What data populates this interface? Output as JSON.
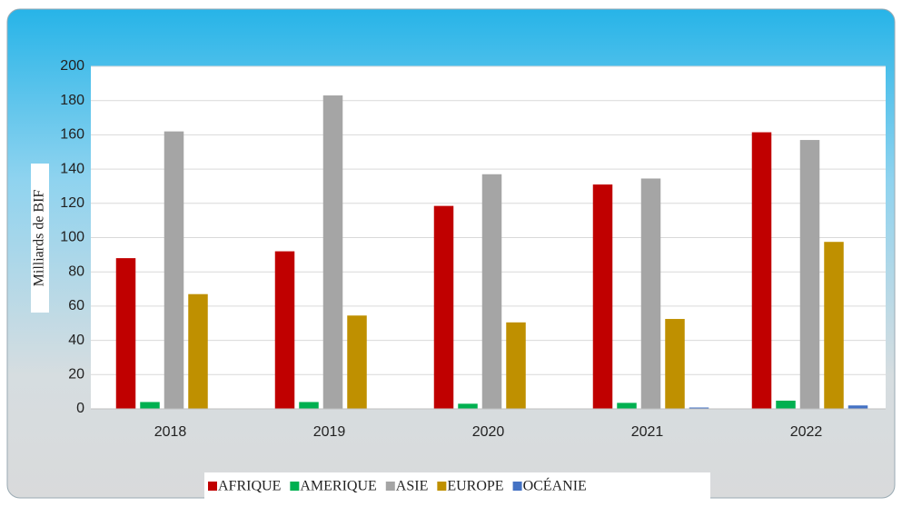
{
  "chart_data": {
    "type": "bar",
    "y_label": "Milliards de BIF",
    "categories": [
      "2018",
      "2019",
      "2020",
      "2021",
      "2022"
    ],
    "series": [
      {
        "name": "AFRIQUE",
        "color": "#c00000",
        "values": [
          88,
          92,
          118.5,
          131,
          161.5
        ]
      },
      {
        "name": "AMERIQUE",
        "color": "#00b050",
        "values": [
          4,
          4,
          3,
          3.5,
          4.8
        ]
      },
      {
        "name": "ASIE",
        "color": "#a5a5a5",
        "values": [
          162,
          183,
          137,
          134.5,
          157
        ]
      },
      {
        "name": "EUROPE",
        "color": "#bf9000",
        "values": [
          67,
          54.5,
          50.5,
          52.5,
          97.5
        ]
      },
      {
        "name": "OCÉANIE",
        "color": "#4472c4",
        "values": [
          0,
          0,
          0,
          0.8,
          2
        ]
      }
    ],
    "ylim": [
      0,
      200
    ],
    "yticks": [
      0,
      20,
      40,
      60,
      80,
      100,
      120,
      140,
      160,
      180,
      200
    ],
    "grid": true,
    "legend": "bottom"
  }
}
